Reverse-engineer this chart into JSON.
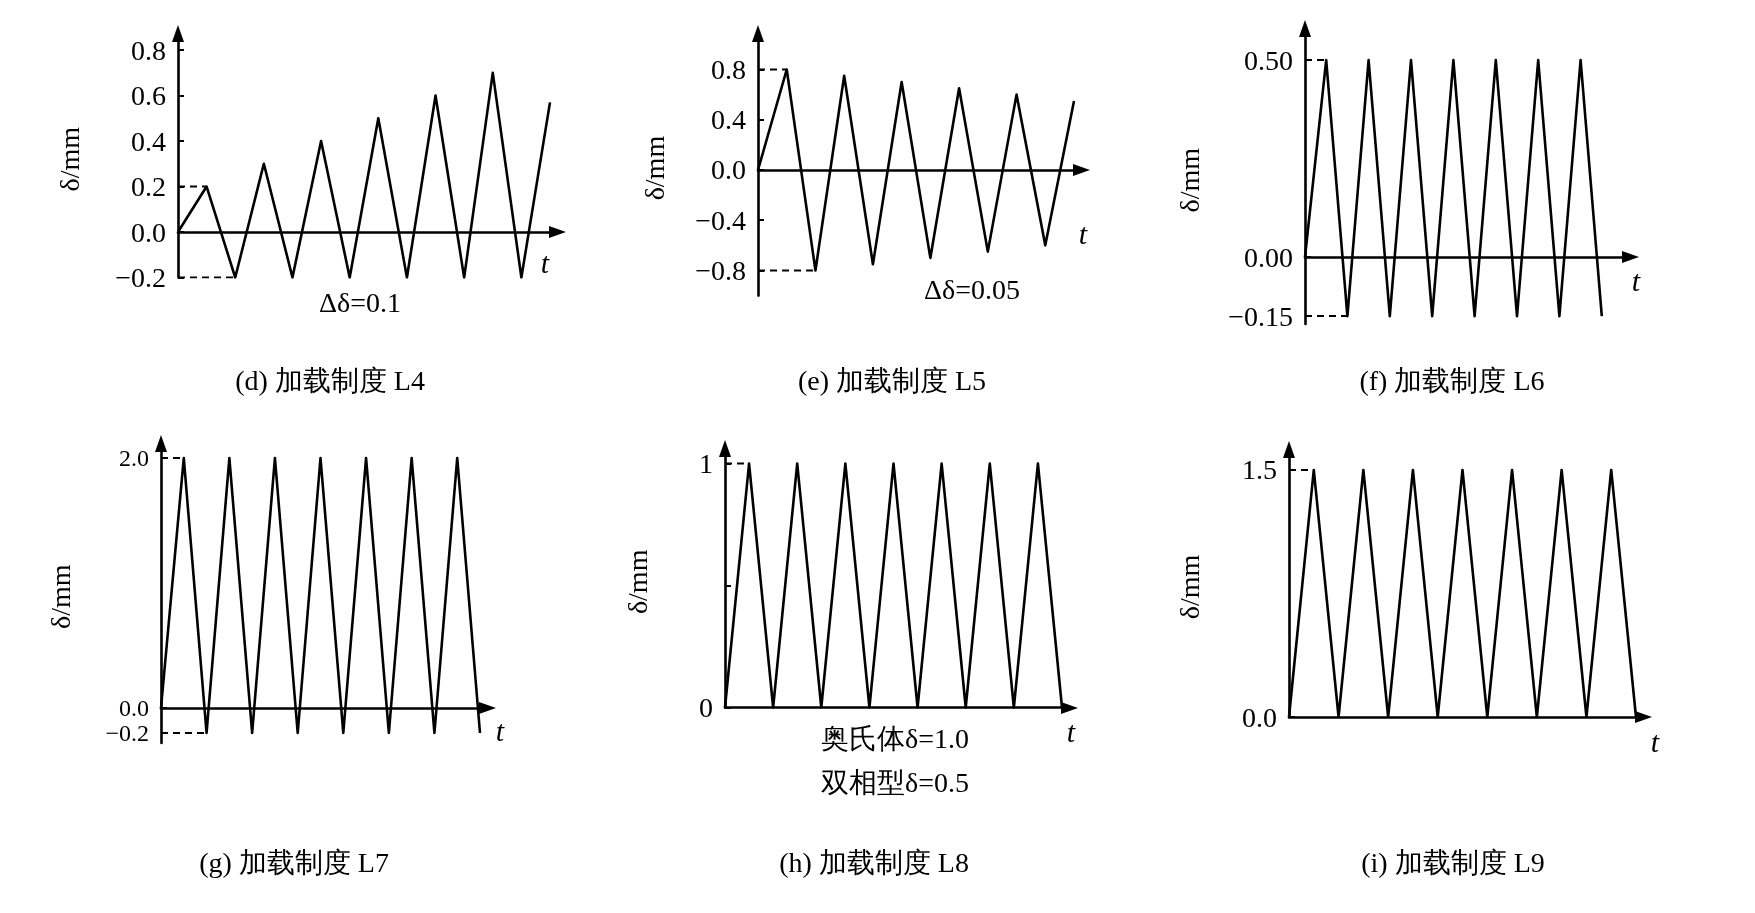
{
  "chart_data": [
    {
      "type": "line",
      "title": "(d) 加载制度 L4",
      "xlabel": "t",
      "ylabel": "δ/mm",
      "tick_labels": "y",
      "categories": [
        null,
        null,
        null,
        null,
        null,
        null,
        null,
        null,
        null,
        null,
        null,
        null,
        null,
        null
      ],
      "series": [
        {
          "color": "#000000",
          "values": [
            0,
            0.2,
            -0.2,
            0.3,
            -0.2,
            0.4,
            -0.2,
            0.5,
            -0.2,
            0.6,
            -0.2,
            0.7,
            -0.2,
            0.57
          ]
        },
        {
          "color": "#000000",
          "line_style": "dashed",
          "values": [
            0.2,
            0.2,
            null,
            null,
            null,
            null,
            null,
            null,
            null,
            null,
            null,
            null,
            null,
            null
          ]
        },
        {
          "color": "#000000",
          "line_style": "dashed",
          "values": [
            -0.2,
            -0.2,
            -0.2,
            null,
            null,
            null,
            null,
            null,
            null,
            null,
            null,
            null,
            null,
            null
          ]
        }
      ],
      "ylim": [
        -0.2,
        0.84
      ],
      "yticks": [
        {
          "value": -0.2,
          "label": "−0.2"
        },
        {
          "value": 0,
          "label": "0.0"
        },
        0.2,
        0.4,
        0.6,
        0.8
      ],
      "annotations": [
        "Δδ=0.1"
      ]
    },
    {
      "type": "line",
      "title": "(e) 加载制度 L5",
      "xlabel": "t",
      "ylabel": "δ/mm",
      "tick_labels": "y",
      "categories": [
        null,
        null,
        null,
        null,
        null,
        null,
        null,
        null,
        null,
        null,
        null,
        null
      ],
      "series": [
        {
          "color": "#000000",
          "values": [
            0,
            0.8,
            -0.8,
            0.75,
            -0.75,
            0.7,
            -0.7,
            0.65,
            -0.65,
            0.6,
            -0.6,
            0.55
          ]
        },
        {
          "color": "#000000",
          "line_style": "dashed",
          "values": [
            0.8,
            0.8,
            null,
            null,
            null,
            null,
            null,
            null,
            null,
            null,
            null,
            null
          ]
        },
        {
          "color": "#000000",
          "line_style": "dashed",
          "values": [
            -0.8,
            -0.8,
            -0.8,
            null,
            null,
            null,
            null,
            null,
            null,
            null,
            null,
            null
          ]
        }
      ],
      "ylim": [
        -1.0,
        1.03
      ],
      "yticks": [
        {
          "value": -0.8,
          "label": "−0.8"
        },
        {
          "value": -0.4,
          "label": "−0.4"
        },
        {
          "value": 0,
          "label": "0.0"
        },
        0.4,
        0.8
      ],
      "annotations": [
        "Δδ=0.05"
      ]
    },
    {
      "type": "line",
      "title": "(f) 加载制度 L6",
      "xlabel": "t",
      "ylabel": "δ/mm",
      "tick_labels": "y",
      "categories": [
        null,
        null,
        null,
        null,
        null,
        null,
        null,
        null,
        null,
        null,
        null,
        null,
        null,
        null,
        null,
        null
      ],
      "series": [
        {
          "color": "#000000",
          "values": [
            0,
            0.5,
            -0.15,
            0.5,
            -0.15,
            0.5,
            -0.15,
            0.5,
            -0.15,
            0.5,
            -0.15,
            0.5,
            -0.15,
            0.5,
            -0.15,
            null
          ]
        },
        {
          "color": "#000000",
          "line_style": "dashed",
          "values": [
            0.5,
            0.5,
            null,
            null,
            null,
            null,
            null,
            null,
            null,
            null,
            null,
            null,
            null,
            null,
            null,
            null
          ]
        },
        {
          "color": "#000000",
          "line_style": "dashed",
          "values": [
            -0.15,
            -0.15,
            -0.15,
            null,
            null,
            null,
            null,
            null,
            null,
            null,
            null,
            null,
            null,
            null,
            null,
            null
          ]
        }
      ],
      "ylim": [
        -0.17,
        0.56
      ],
      "yticks": [
        {
          "value": -0.15,
          "label": "−0.15"
        },
        {
          "value": 0,
          "label": "0.00"
        },
        {
          "value": 0.5,
          "label": "0.50"
        }
      ]
    },
    {
      "type": "line",
      "title": "(g) 加载制度 L7",
      "xlabel": "t",
      "ylabel": "δ/mm",
      "tick_labels": "y",
      "categories": [
        null,
        null,
        null,
        null,
        null,
        null,
        null,
        null,
        null,
        null,
        null,
        null,
        null,
        null,
        null
      ],
      "series": [
        {
          "color": "#000000",
          "values": [
            0,
            2.0,
            -0.2,
            2.0,
            -0.2,
            2.0,
            -0.2,
            2.0,
            -0.2,
            2.0,
            -0.2,
            2.0,
            -0.2,
            2.0,
            -0.2
          ]
        },
        {
          "color": "#000000",
          "line_style": "dashed",
          "values": [
            2.0,
            2.0,
            null,
            null,
            null,
            null,
            null,
            null,
            null,
            null,
            null,
            null,
            null,
            null,
            null
          ]
        },
        {
          "color": "#000000",
          "line_style": "dashed",
          "values": [
            -0.2,
            -0.2,
            -0.2,
            null,
            null,
            null,
            null,
            null,
            null,
            null,
            null,
            null,
            null,
            null,
            null
          ]
        }
      ],
      "ylim": [
        -0.28,
        2.06
      ],
      "yticks": [
        {
          "value": -0.2,
          "label": "−0.2"
        },
        {
          "value": 0,
          "label": "0.0"
        },
        {
          "value": 2.0,
          "label": "2.0"
        }
      ]
    },
    {
      "type": "line",
      "title": "(h) 加载制度 L8",
      "xlabel": "t",
      "ylabel": "δ/mm",
      "tick_labels": "y",
      "categories": [
        null,
        null,
        null,
        null,
        null,
        null,
        null,
        null,
        null,
        null,
        null,
        null,
        null,
        null,
        null
      ],
      "series": [
        {
          "color": "#000000",
          "values": [
            0,
            1,
            0,
            1,
            0,
            1,
            0,
            1,
            0,
            1,
            0,
            1,
            0,
            1,
            0
          ]
        },
        {
          "color": "#000000",
          "line_style": "dashed",
          "values": [
            1,
            1,
            null,
            null,
            null,
            null,
            null,
            null,
            null,
            null,
            null,
            null,
            null,
            null,
            null
          ]
        }
      ],
      "ylim": [
        0,
        1.03
      ],
      "yticks": [
        0,
        {
          "value": 0.5,
          "label": null
        },
        1
      ],
      "annotations": [
        "奥氏体δ=1.0",
        "双相型δ=0.5"
      ]
    },
    {
      "type": "line",
      "title": "(i) 加载制度 L9",
      "xlabel": "t",
      "ylabel": "δ/mm",
      "tick_labels": "y",
      "categories": [
        null,
        null,
        null,
        null,
        null,
        null,
        null,
        null,
        null,
        null,
        null,
        null,
        null,
        null,
        null
      ],
      "series": [
        {
          "color": "#000000",
          "values": [
            0,
            1.5,
            0,
            1.5,
            0,
            1.5,
            0,
            1.5,
            0,
            1.5,
            0,
            1.5,
            0,
            1.5,
            0
          ]
        },
        {
          "color": "#000000",
          "line_style": "dashed",
          "values": [
            1.5,
            1.5,
            null,
            null,
            null,
            null,
            null,
            null,
            null,
            null,
            null,
            null,
            null,
            null,
            null
          ]
        }
      ],
      "ylim": [
        0,
        1.58
      ],
      "yticks": [
        {
          "value": 0,
          "label": "0.0"
        },
        1.5
      ]
    }
  ]
}
